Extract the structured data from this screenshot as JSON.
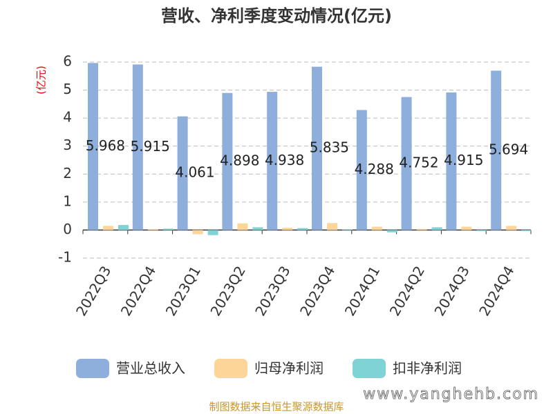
{
  "chart_data": {
    "type": "bar",
    "title": "营收、净利季度变动情况(亿元)",
    "y_label": "(亿元)",
    "categories": [
      "2022Q3",
      "2022Q4",
      "2023Q1",
      "2023Q2",
      "2023Q3",
      "2023Q4",
      "2024Q1",
      "2024Q2",
      "2024Q3",
      "2024Q4"
    ],
    "series": [
      {
        "name": "营业总收入",
        "color": "#8eaedc",
        "values": [
          5.968,
          5.915,
          4.061,
          4.898,
          4.938,
          5.835,
          4.288,
          4.752,
          4.915,
          5.694
        ]
      },
      {
        "name": "归母净利润",
        "color": "#fdd598",
        "values": [
          0.15,
          0.03,
          -0.15,
          0.24,
          0.08,
          0.25,
          0.12,
          0.04,
          0.12,
          0.15
        ]
      },
      {
        "name": "扣非净利润",
        "color": "#7fd3d4",
        "values": [
          0.18,
          0.05,
          -0.18,
          0.1,
          0.07,
          0.02,
          -0.08,
          0.1,
          -0.03,
          -0.03
        ]
      }
    ],
    "ylim": [
      -1,
      6
    ],
    "yticks": [
      -1,
      0,
      1,
      2,
      3,
      4,
      5,
      6
    ],
    "grid": true,
    "source": "制图数据来自恒生聚源数据库",
    "watermark": "www.yanghehb.com"
  }
}
